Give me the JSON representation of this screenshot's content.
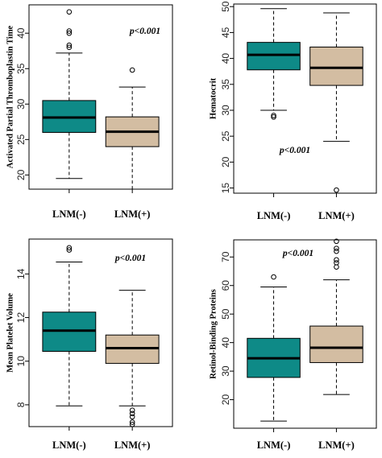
{
  "figure": {
    "colors": {
      "group1": "#0e8a87",
      "group2": "#d3bda2",
      "line": "#000000"
    }
  },
  "chart_data": [
    {
      "type": "box",
      "ylabel": "Activated Partial Thromboplastin Time",
      "categories": [
        "LNM(-)",
        "LNM(+)"
      ],
      "ylim": [
        18,
        44
      ],
      "yticks": [
        20,
        25,
        30,
        35,
        40
      ],
      "annotation": "p<0.001",
      "boxes": [
        {
          "category": "LNM(-)",
          "min": 19.5,
          "q1": 26.0,
          "median": 28.1,
          "q3": 30.5,
          "max": 37.2,
          "outliers": [
            38.0,
            38.3,
            40.0,
            40.3,
            43.0
          ]
        },
        {
          "category": "LNM(+)",
          "min": 18.0,
          "q1": 24.0,
          "median": 26.1,
          "q3": 28.2,
          "max": 32.4,
          "outliers": [
            34.8
          ]
        }
      ]
    },
    {
      "type": "box",
      "ylabel": "Hematocrit",
      "categories": [
        "LNM(-)",
        "LNM(+)"
      ],
      "ylim": [
        14,
        50.5
      ],
      "yticks": [
        15,
        20,
        25,
        30,
        35,
        40,
        45,
        50
      ],
      "annotation": "p<0.001",
      "boxes": [
        {
          "category": "LNM(-)",
          "min": 30.0,
          "q1": 37.8,
          "median": 40.7,
          "q3": 43.1,
          "max": 49.6,
          "outliers": [
            28.7,
            29.0
          ]
        },
        {
          "category": "LNM(+)",
          "min": 24.0,
          "q1": 34.8,
          "median": 38.2,
          "q3": 42.2,
          "max": 48.8,
          "outliers": [
            14.6
          ]
        }
      ]
    },
    {
      "type": "box",
      "ylabel": "Mean Platelet Volume",
      "categories": [
        "LNM(-)",
        "LNM(+)"
      ],
      "ylim": [
        7,
        15.6
      ],
      "yticks": [
        8,
        10,
        12,
        14
      ],
      "annotation": "p<0.001",
      "boxes": [
        {
          "category": "LNM(-)",
          "min": 7.95,
          "q1": 10.45,
          "median": 11.4,
          "q3": 12.25,
          "max": 14.55,
          "outliers": [
            15.1,
            15.2
          ]
        },
        {
          "category": "LNM(+)",
          "min": 7.95,
          "q1": 9.9,
          "median": 10.6,
          "q3": 11.2,
          "max": 13.25,
          "outliers": [
            7.1,
            7.2,
            7.45,
            7.6,
            7.75
          ]
        }
      ]
    },
    {
      "type": "box",
      "ylabel": "Retinol-Binding Proteins",
      "categories": [
        "LNM(-)",
        "LNM(+)"
      ],
      "ylim": [
        10,
        76
      ],
      "yticks": [
        20,
        30,
        40,
        50,
        60,
        70
      ],
      "annotation": "p<0.001",
      "boxes": [
        {
          "category": "LNM(-)",
          "min": 12.5,
          "q1": 27.8,
          "median": 34.5,
          "q3": 41.5,
          "max": 59.5,
          "outliers": [
            63.0
          ]
        },
        {
          "category": "LNM(+)",
          "min": 21.8,
          "q1": 33.0,
          "median": 38.2,
          "q3": 45.8,
          "max": 62.0,
          "outliers": [
            66.5,
            68.0,
            69.0,
            72.0,
            73.0,
            75.5
          ]
        }
      ]
    }
  ]
}
